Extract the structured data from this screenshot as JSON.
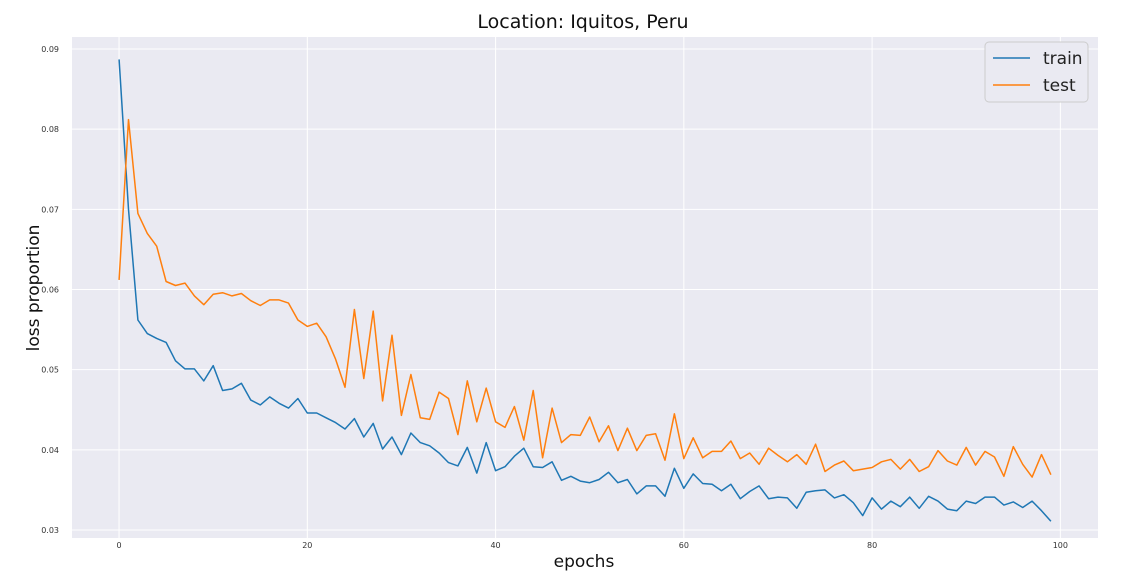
{
  "chart_data": {
    "type": "line",
    "title": "Location: Iquitos, Peru",
    "xlabel": "epochs",
    "ylabel": "loss proportion",
    "xlim": [
      -5,
      104
    ],
    "ylim": [
      0.029,
      0.0915
    ],
    "xticks": [
      0,
      20,
      40,
      60,
      80,
      100
    ],
    "yticks": [
      0.03,
      0.04,
      0.05,
      0.06,
      0.07,
      0.08,
      0.09
    ],
    "ytick_labels": [
      "0.03",
      "0.04",
      "0.05",
      "0.06",
      "0.07",
      "0.08",
      "0.09"
    ],
    "grid": true,
    "legend_position": "top-right",
    "colors": {
      "background": "#eaeaf2",
      "grid": "#ffffff",
      "train": "#1f77b4",
      "test": "#ff7f0e"
    },
    "series": [
      {
        "name": "train",
        "x": [
          0,
          1,
          2,
          3,
          4,
          5,
          6,
          7,
          8,
          9,
          10,
          11,
          12,
          13,
          14,
          15,
          16,
          17,
          18,
          19,
          20,
          21,
          22,
          23,
          24,
          25,
          26,
          27,
          28,
          29,
          30,
          31,
          32,
          33,
          34,
          35,
          36,
          37,
          38,
          39,
          40,
          41,
          42,
          43,
          44,
          45,
          46,
          47,
          48,
          49,
          50,
          51,
          52,
          53,
          54,
          55,
          56,
          57,
          58,
          59,
          60,
          61,
          62,
          63,
          64,
          65,
          66,
          67,
          68,
          69,
          70,
          71,
          72,
          73,
          74,
          75,
          76,
          77,
          78,
          79,
          80,
          81,
          82,
          83,
          84,
          85,
          86,
          87,
          88,
          89,
          90,
          91,
          92,
          93,
          94,
          95,
          96,
          97,
          98,
          99
        ],
        "values": [
          0.0887,
          0.07,
          0.0562,
          0.0545,
          0.0539,
          0.0534,
          0.0511,
          0.0501,
          0.0501,
          0.0486,
          0.0505,
          0.0474,
          0.0476,
          0.0483,
          0.0462,
          0.0456,
          0.0466,
          0.0458,
          0.0452,
          0.0464,
          0.0446,
          0.0446,
          0.044,
          0.0434,
          0.0426,
          0.0439,
          0.0416,
          0.0433,
          0.0401,
          0.0416,
          0.0394,
          0.0421,
          0.0409,
          0.0405,
          0.0396,
          0.0384,
          0.038,
          0.0403,
          0.0371,
          0.0409,
          0.0374,
          0.0379,
          0.0392,
          0.0402,
          0.0379,
          0.0378,
          0.0385,
          0.0362,
          0.0367,
          0.0361,
          0.0359,
          0.0363,
          0.0372,
          0.0359,
          0.0363,
          0.0345,
          0.0355,
          0.0355,
          0.0342,
          0.0377,
          0.0352,
          0.037,
          0.0358,
          0.0357,
          0.0349,
          0.0357,
          0.0339,
          0.0348,
          0.0355,
          0.0339,
          0.0341,
          0.034,
          0.0327,
          0.0347,
          0.0349,
          0.035,
          0.034,
          0.0344,
          0.0334,
          0.0318,
          0.034,
          0.0326,
          0.0336,
          0.0329,
          0.0341,
          0.0327,
          0.0342,
          0.0336,
          0.0326,
          0.0324,
          0.0336,
          0.0333,
          0.0341,
          0.0341,
          0.0331,
          0.0335,
          0.0328,
          0.0336,
          0.0324,
          0.0311
        ]
      },
      {
        "name": "test",
        "x": [
          0,
          1,
          2,
          3,
          4,
          5,
          6,
          7,
          8,
          9,
          10,
          11,
          12,
          13,
          14,
          15,
          16,
          17,
          18,
          19,
          20,
          21,
          22,
          23,
          24,
          25,
          26,
          27,
          28,
          29,
          30,
          31,
          32,
          33,
          34,
          35,
          36,
          37,
          38,
          39,
          40,
          41,
          42,
          43,
          44,
          45,
          46,
          47,
          48,
          49,
          50,
          51,
          52,
          53,
          54,
          55,
          56,
          57,
          58,
          59,
          60,
          61,
          62,
          63,
          64,
          65,
          66,
          67,
          68,
          69,
          70,
          71,
          72,
          73,
          74,
          75,
          76,
          77,
          78,
          79,
          80,
          81,
          82,
          83,
          84,
          85,
          86,
          87,
          88,
          89,
          90,
          91,
          92,
          93,
          94,
          95,
          96,
          97,
          98,
          99
        ],
        "values": [
          0.0612,
          0.0812,
          0.0695,
          0.067,
          0.0654,
          0.061,
          0.0605,
          0.0608,
          0.0592,
          0.0581,
          0.0594,
          0.0596,
          0.0592,
          0.0595,
          0.0586,
          0.058,
          0.0587,
          0.0587,
          0.0583,
          0.0562,
          0.0554,
          0.0558,
          0.0541,
          0.0513,
          0.0478,
          0.0575,
          0.0489,
          0.0573,
          0.0461,
          0.0543,
          0.0443,
          0.0494,
          0.044,
          0.0438,
          0.0472,
          0.0464,
          0.0419,
          0.0486,
          0.0435,
          0.0477,
          0.0435,
          0.0428,
          0.0454,
          0.0412,
          0.0474,
          0.039,
          0.0452,
          0.0409,
          0.0419,
          0.0418,
          0.0441,
          0.041,
          0.043,
          0.0399,
          0.0427,
          0.0399,
          0.0418,
          0.042,
          0.0387,
          0.0445,
          0.0389,
          0.0415,
          0.039,
          0.0398,
          0.0398,
          0.0411,
          0.0389,
          0.0396,
          0.0382,
          0.0402,
          0.0393,
          0.0385,
          0.0394,
          0.0382,
          0.0407,
          0.0373,
          0.0381,
          0.0386,
          0.0374,
          0.0376,
          0.0378,
          0.0385,
          0.0388,
          0.0376,
          0.0388,
          0.0373,
          0.0379,
          0.0399,
          0.0386,
          0.0381,
          0.0403,
          0.0381,
          0.0398,
          0.0391,
          0.0367,
          0.0404,
          0.0382,
          0.0366,
          0.0394,
          0.0369
        ]
      }
    ]
  }
}
